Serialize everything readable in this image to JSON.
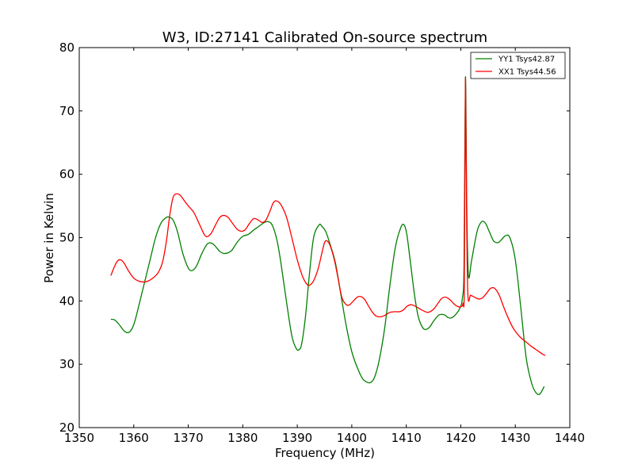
{
  "chart_data": {
    "type": "line",
    "title": "W3, ID:27141 Calibrated On-source spectrum",
    "xlabel": "Frequency (MHz)",
    "ylabel": "Power in Kelvin",
    "xlim": [
      1350,
      1440
    ],
    "ylim": [
      20,
      80
    ],
    "xticks": [
      1350,
      1360,
      1370,
      1380,
      1390,
      1400,
      1410,
      1420,
      1430,
      1440
    ],
    "yticks": [
      20,
      30,
      40,
      50,
      60,
      70,
      80
    ],
    "grid": false,
    "legend_position": "top-right",
    "series": [
      {
        "name": "YY1 Tsys42.87",
        "color": "#008000",
        "x": [
          1355.8,
          1356.5,
          1357.3,
          1358.2,
          1359.0,
          1359.6,
          1360.2,
          1361.0,
          1362.0,
          1363.0,
          1364.0,
          1365.0,
          1366.0,
          1366.6,
          1367.2,
          1368.0,
          1369.0,
          1370.0,
          1370.7,
          1371.5,
          1372.5,
          1373.5,
          1374.3,
          1375.0,
          1375.8,
          1376.5,
          1377.3,
          1378.0,
          1379.0,
          1380.0,
          1381.0,
          1382.0,
          1383.0,
          1384.0,
          1384.8,
          1385.5,
          1386.3,
          1387.0,
          1388.0,
          1389.0,
          1389.8,
          1390.3,
          1390.8,
          1391.5,
          1392.2,
          1393.0,
          1394.0,
          1394.5,
          1395.2,
          1396.0,
          1397.0,
          1398.0,
          1399.0,
          1400.0,
          1401.0,
          1402.0,
          1403.0,
          1403.6,
          1404.2,
          1405.0,
          1406.0,
          1407.0,
          1408.0,
          1409.0,
          1409.6,
          1410.1,
          1410.7,
          1411.5,
          1412.2,
          1413.0,
          1413.6,
          1414.3,
          1415.0,
          1416.0,
          1417.0,
          1417.6,
          1418.2,
          1419.0,
          1419.8,
          1420.3,
          1420.6,
          1420.85,
          1421.1,
          1421.4,
          1422.0,
          1423.0,
          1423.8,
          1424.5,
          1425.2,
          1426.0,
          1426.8,
          1427.5,
          1428.2,
          1429.0,
          1430.0,
          1431.0,
          1432.0,
          1433.0,
          1433.8,
          1434.5,
          1435.3
        ],
        "y": [
          37.1,
          37.0,
          36.3,
          35.3,
          35.0,
          35.5,
          36.8,
          39.5,
          43.0,
          46.5,
          50.0,
          52.3,
          53.2,
          53.2,
          52.8,
          51.0,
          47.5,
          45.2,
          44.8,
          45.5,
          47.5,
          49.0,
          49.1,
          48.6,
          47.8,
          47.5,
          47.6,
          48.0,
          49.3,
          50.2,
          50.5,
          51.2,
          51.8,
          52.4,
          52.5,
          51.8,
          49.5,
          46.0,
          40.0,
          34.5,
          32.5,
          32.3,
          33.2,
          37.5,
          44.0,
          50.0,
          52.0,
          51.8,
          51.0,
          49.0,
          46.0,
          41.0,
          36.0,
          32.0,
          29.5,
          27.7,
          27.1,
          27.2,
          28.0,
          30.5,
          35.5,
          42.5,
          48.5,
          51.6,
          52.0,
          50.5,
          46.5,
          41.0,
          37.5,
          35.8,
          35.5,
          35.9,
          36.8,
          37.8,
          37.8,
          37.4,
          37.3,
          37.8,
          38.8,
          40.5,
          46.0,
          75.3,
          55.0,
          44.0,
          46.5,
          51.0,
          52.5,
          52.3,
          51.0,
          49.5,
          49.2,
          49.7,
          50.3,
          50.0,
          46.5,
          39.0,
          31.0,
          27.0,
          25.5,
          25.3,
          26.5
        ]
      },
      {
        "name": "XX1 Tsys44.56",
        "color": "#ff0000",
        "x": [
          1355.8,
          1356.4,
          1357.0,
          1357.6,
          1358.2,
          1359.0,
          1360.0,
          1361.0,
          1361.8,
          1362.5,
          1363.5,
          1364.5,
          1365.3,
          1366.0,
          1366.6,
          1367.2,
          1367.8,
          1368.5,
          1369.3,
          1370.0,
          1371.0,
          1372.0,
          1373.0,
          1373.6,
          1374.3,
          1375.0,
          1375.8,
          1376.5,
          1377.3,
          1378.0,
          1379.0,
          1379.8,
          1380.5,
          1381.2,
          1382.0,
          1382.8,
          1383.5,
          1384.2,
          1385.0,
          1385.6,
          1386.2,
          1387.0,
          1388.0,
          1389.0,
          1390.0,
          1391.0,
          1391.8,
          1392.3,
          1393.0,
          1393.8,
          1394.5,
          1395.0,
          1395.4,
          1396.0,
          1396.8,
          1397.5,
          1398.2,
          1399.0,
          1399.6,
          1400.3,
          1401.0,
          1401.6,
          1402.3,
          1403.0,
          1403.8,
          1404.5,
          1405.3,
          1406.0,
          1407.0,
          1408.0,
          1408.8,
          1409.5,
          1410.2,
          1411.0,
          1412.0,
          1413.0,
          1414.0,
          1415.0,
          1415.8,
          1416.5,
          1417.2,
          1418.0,
          1418.8,
          1419.5,
          1420.0,
          1420.4,
          1420.65,
          1420.85,
          1421.05,
          1421.3,
          1421.8,
          1422.5,
          1423.3,
          1424.0,
          1424.8,
          1425.5,
          1426.2,
          1427.0,
          1427.8,
          1428.5,
          1429.3,
          1430.0,
          1431.0,
          1432.0,
          1433.0,
          1434.0,
          1435.0,
          1435.5
        ],
        "y": [
          44.0,
          45.3,
          46.3,
          46.5,
          46.0,
          44.8,
          43.6,
          43.1,
          43.0,
          43.1,
          43.6,
          44.5,
          46.2,
          49.5,
          53.5,
          56.3,
          56.9,
          56.7,
          55.8,
          55.0,
          54.0,
          52.2,
          50.4,
          50.2,
          50.8,
          52.0,
          53.2,
          53.5,
          53.2,
          52.4,
          51.3,
          51.0,
          51.3,
          52.2,
          53.0,
          52.8,
          52.4,
          52.7,
          54.2,
          55.5,
          55.8,
          55.2,
          53.3,
          50.0,
          46.5,
          43.8,
          42.6,
          42.5,
          43.2,
          45.0,
          47.5,
          49.2,
          49.5,
          48.8,
          46.5,
          43.5,
          40.5,
          39.4,
          39.4,
          40.0,
          40.6,
          40.7,
          40.3,
          39.3,
          38.2,
          37.6,
          37.5,
          37.7,
          38.2,
          38.3,
          38.3,
          38.6,
          39.2,
          39.4,
          39.0,
          38.5,
          38.2,
          38.7,
          39.6,
          40.4,
          40.6,
          40.2,
          39.5,
          39.1,
          39.1,
          39.6,
          42.5,
          75.0,
          55.0,
          41.0,
          40.9,
          40.6,
          40.3,
          40.5,
          41.3,
          42.0,
          42.0,
          41.0,
          39.2,
          37.7,
          36.2,
          35.2,
          34.2,
          33.5,
          32.8,
          32.2,
          31.6,
          31.4
        ]
      }
    ]
  }
}
